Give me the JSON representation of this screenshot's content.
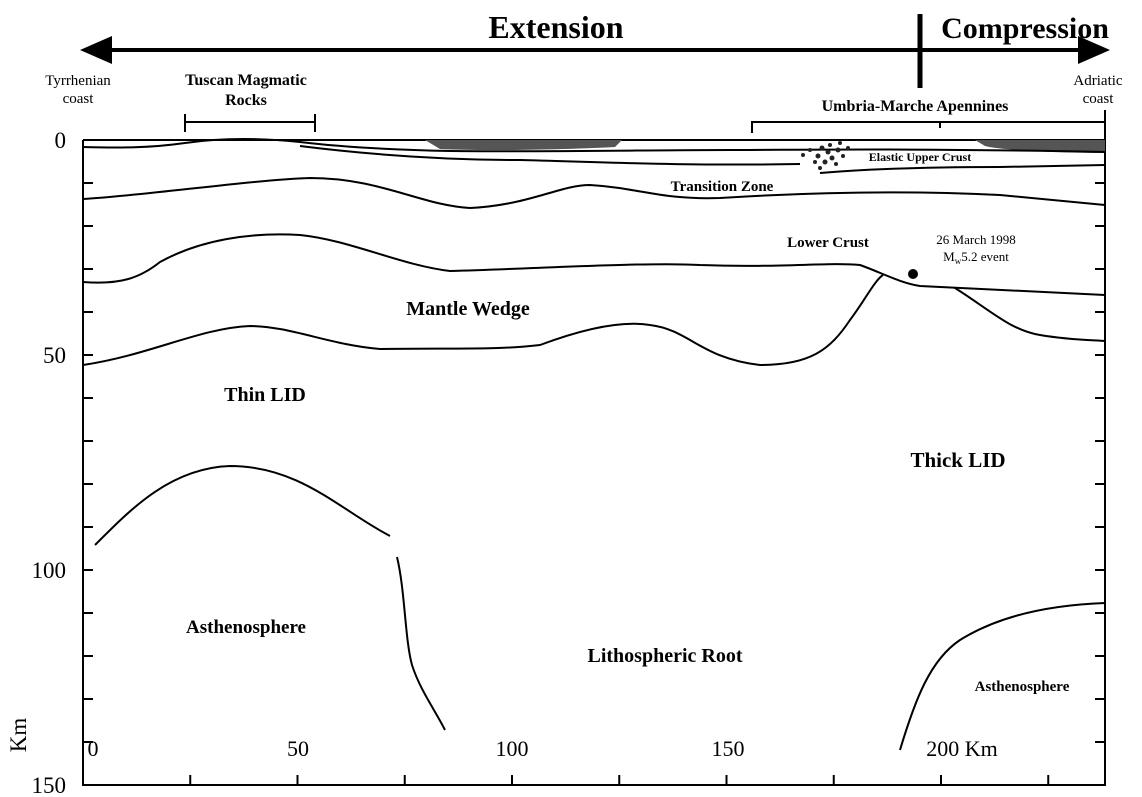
{
  "header": {
    "extension": "Extension",
    "compression": "Compression"
  },
  "locations": {
    "tyrrhenian": [
      "Tyrrhenian",
      "coast"
    ],
    "tuscan": [
      "Tuscan Magmatic",
      "Rocks"
    ],
    "adriatic": [
      "Adriatic",
      "coast"
    ],
    "umbria": "Umbria-Marche Apennines"
  },
  "layers": {
    "elastic": "Elastic Upper Crust",
    "transition": "Transition Zone",
    "lower_crust": "Lower Crust",
    "mantle_wedge": "Mantle Wedge",
    "thin_lid": "Thin LID",
    "thick_lid": "Thick LID",
    "asthenosphere_left": "Asthenosphere",
    "root": "Lithospheric Root",
    "asthenosphere_right": "Asthenosphere"
  },
  "event": {
    "date": "26 March 1998",
    "m": "M",
    "sub": "w",
    "rest": "5.2 event"
  },
  "axes": {
    "depth_labels": [
      "0",
      "50",
      "100",
      "150"
    ],
    "depth_unit": "Km",
    "distance_labels": [
      "0",
      "50",
      "100",
      "150",
      "200 Km"
    ]
  }
}
